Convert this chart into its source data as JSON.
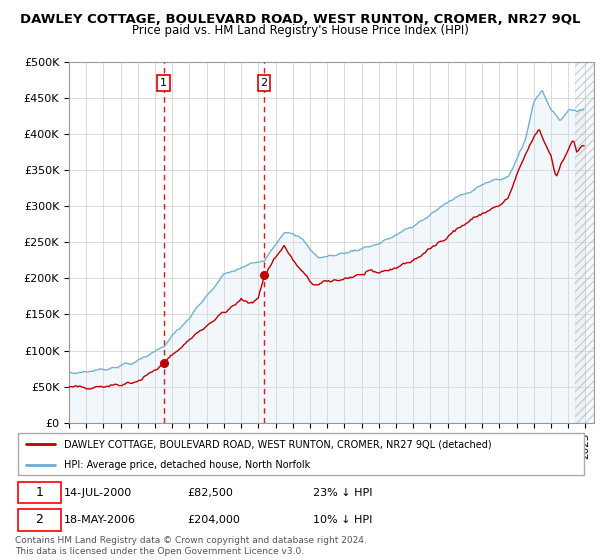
{
  "title": "DAWLEY COTTAGE, BOULEVARD ROAD, WEST RUNTON, CROMER, NR27 9QL",
  "subtitle": "Price paid vs. HM Land Registry's House Price Index (HPI)",
  "red_label": "DAWLEY COTTAGE, BOULEVARD ROAD, WEST RUNTON, CROMER, NR27 9QL (detached)",
  "blue_label": "HPI: Average price, detached house, North Norfolk",
  "transaction1_date": "14-JUL-2000",
  "transaction1_price": "£82,500",
  "transaction1_note": "23% ↓ HPI",
  "transaction2_date": "18-MAY-2006",
  "transaction2_price": "£204,000",
  "transaction2_note": "10% ↓ HPI",
  "footer": "Contains HM Land Registry data © Crown copyright and database right 2024.\nThis data is licensed under the Open Government Licence v3.0.",
  "ylim": [
    0,
    500000
  ],
  "ytick_vals": [
    0,
    50000,
    100000,
    150000,
    200000,
    250000,
    300000,
    350000,
    400000,
    450000,
    500000
  ],
  "ytick_labels": [
    "£0",
    "£50K",
    "£100K",
    "£150K",
    "£200K",
    "£250K",
    "£300K",
    "£350K",
    "£400K",
    "£450K",
    "£500K"
  ],
  "hpi_color": "#6aadd5",
  "hpi_fill_color": "#cce0f0",
  "price_color": "#c00000",
  "vline_color": "#dd0000",
  "grid_color": "#cccccc",
  "hatch_color": "#d0e8f8",
  "xlim_start": 1995,
  "xlim_end": 2025.5,
  "transaction1_year": 2000.54,
  "transaction2_year": 2006.37
}
